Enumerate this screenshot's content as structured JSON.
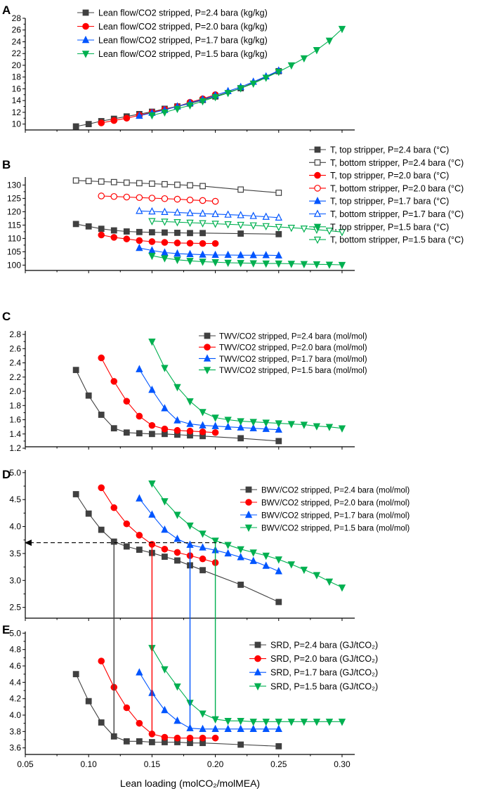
{
  "colors": {
    "p24": "#404040",
    "p20": "#ff0000",
    "p17": "#0055ff",
    "p15": "#00b050",
    "axis": "#000000"
  },
  "x_axis": {
    "label": "Lean loading (molCO₂/molMEA)",
    "ticks": [
      {
        "v": 0.05,
        "t": "0.05"
      },
      {
        "v": 0.1,
        "t": "0.10"
      },
      {
        "v": 0.15,
        "t": "0.15"
      },
      {
        "v": 0.2,
        "t": "0.20"
      },
      {
        "v": 0.25,
        "t": "0.25"
      },
      {
        "v": 0.3,
        "t": "0.30"
      }
    ],
    "range": [
      0.05,
      0.31
    ]
  },
  "chart_data": [
    {
      "panel": "A",
      "type": "line",
      "ylim": [
        9,
        28
      ],
      "yticks": [
        "10",
        "12",
        "14",
        "16",
        "18",
        "20",
        "22",
        "24",
        "26",
        "28"
      ],
      "series": [
        {
          "name": "Lean flow/CO2 stripped, P=2.4 bara (kg/kg)",
          "color": "p24",
          "marker": "square",
          "filled": true,
          "x": [
            0.09,
            0.1,
            0.11,
            0.12,
            0.13,
            0.14,
            0.15,
            0.16,
            0.17,
            0.18,
            0.19,
            0.2,
            0.22,
            0.25
          ],
          "y": [
            9.6,
            10.0,
            10.5,
            10.9,
            11.3,
            11.7,
            12.1,
            12.6,
            13.0,
            13.5,
            14.1,
            14.7,
            16.1,
            19.0
          ]
        },
        {
          "name": "Lean flow/CO2 stripped, P=2.0 bara (kg/kg)",
          "color": "p20",
          "marker": "circle",
          "filled": true,
          "x": [
            0.11,
            0.12,
            0.13,
            0.14,
            0.15,
            0.16,
            0.17,
            0.18,
            0.19,
            0.2
          ],
          "y": [
            10.2,
            10.6,
            11.0,
            11.5,
            12.0,
            12.5,
            13.0,
            13.7,
            14.3,
            15.0
          ]
        },
        {
          "name": "Lean flow/CO2 stripped, P=1.7 bara (kg/kg)",
          "color": "p17",
          "marker": "triangle-up",
          "filled": true,
          "x": [
            0.14,
            0.15,
            0.16,
            0.17,
            0.18,
            0.19,
            0.2,
            0.21,
            0.22,
            0.23,
            0.24,
            0.25
          ],
          "y": [
            11.4,
            11.9,
            12.4,
            13.0,
            13.6,
            14.2,
            14.9,
            15.6,
            16.3,
            17.2,
            18.1,
            19.1
          ]
        },
        {
          "name": "Lean flow/CO2 stripped, P=1.5 bara (kg/kg)",
          "color": "p15",
          "marker": "triangle-down",
          "filled": true,
          "x": [
            0.15,
            0.16,
            0.17,
            0.18,
            0.19,
            0.2,
            0.21,
            0.22,
            0.23,
            0.24,
            0.25,
            0.26,
            0.27,
            0.28,
            0.29,
            0.3
          ],
          "y": [
            11.5,
            12.0,
            12.6,
            13.2,
            13.9,
            14.6,
            15.3,
            16.1,
            16.9,
            17.9,
            18.9,
            20.0,
            21.2,
            22.6,
            24.2,
            26.2
          ]
        }
      ]
    },
    {
      "panel": "B",
      "type": "line",
      "ylim": [
        98,
        133
      ],
      "yticks": [
        "100",
        "105",
        "110",
        "115",
        "120",
        "125",
        "130"
      ],
      "series": [
        {
          "name": "T, top stripper, P=2.4 bara (°C)",
          "color": "p24",
          "marker": "square",
          "filled": true,
          "x": [
            0.09,
            0.1,
            0.11,
            0.12,
            0.13,
            0.14,
            0.15,
            0.16,
            0.17,
            0.18,
            0.19,
            0.22,
            0.25
          ],
          "y": [
            115.4,
            114.5,
            113.6,
            113.0,
            112.6,
            112.4,
            112.3,
            112.2,
            112.1,
            112.0,
            112.0,
            111.8,
            111.6
          ]
        },
        {
          "name": "T, bottom stripper, P=2.4 bara (°C)",
          "color": "p24",
          "marker": "square",
          "filled": false,
          "x": [
            0.09,
            0.1,
            0.11,
            0.12,
            0.13,
            0.14,
            0.15,
            0.16,
            0.17,
            0.18,
            0.19,
            0.22,
            0.25
          ],
          "y": [
            131.7,
            131.5,
            131.3,
            131.1,
            130.9,
            130.7,
            130.5,
            130.3,
            130.1,
            129.9,
            129.6,
            128.3,
            127.1
          ]
        },
        {
          "name": "T, top stripper, P=2.0 bara (°C)",
          "color": "p20",
          "marker": "circle",
          "filled": true,
          "x": [
            0.11,
            0.12,
            0.13,
            0.14,
            0.15,
            0.16,
            0.17,
            0.18,
            0.19,
            0.2
          ],
          "y": [
            111.3,
            110.4,
            109.8,
            109.2,
            108.8,
            108.5,
            108.3,
            108.2,
            108.1,
            108.1
          ]
        },
        {
          "name": "T, bottom stripper, P=2.0 bara (°C)",
          "color": "p20",
          "marker": "circle",
          "filled": false,
          "x": [
            0.11,
            0.12,
            0.13,
            0.14,
            0.15,
            0.16,
            0.17,
            0.18,
            0.19,
            0.2
          ],
          "y": [
            125.9,
            125.7,
            125.5,
            125.3,
            125.1,
            124.9,
            124.7,
            124.4,
            124.2,
            123.9
          ]
        },
        {
          "name": "T, top stripper, P=1.7 bara (°C)",
          "color": "p17",
          "marker": "triangle-up",
          "filled": true,
          "x": [
            0.14,
            0.15,
            0.16,
            0.17,
            0.18,
            0.19,
            0.2,
            0.21,
            0.22,
            0.23,
            0.24,
            0.25
          ],
          "y": [
            106.4,
            105.5,
            104.7,
            104.3,
            104.1,
            103.9,
            103.8,
            103.8,
            103.7,
            103.7,
            103.7,
            103.6
          ]
        },
        {
          "name": "T, bottom stripper, P=1.7 bara (°C)",
          "color": "p17",
          "marker": "triangle-up",
          "filled": false,
          "x": [
            0.14,
            0.15,
            0.16,
            0.17,
            0.18,
            0.19,
            0.2,
            0.21,
            0.22,
            0.23,
            0.24,
            0.25
          ],
          "y": [
            120.3,
            120.1,
            119.9,
            119.7,
            119.5,
            119.3,
            119.1,
            118.9,
            118.7,
            118.4,
            118.1,
            117.8
          ]
        },
        {
          "name": "T, top stripper, P=1.5 bara (°C)",
          "color": "p15",
          "marker": "triangle-down",
          "filled": true,
          "x": [
            0.15,
            0.16,
            0.17,
            0.18,
            0.19,
            0.2,
            0.21,
            0.22,
            0.23,
            0.24,
            0.25,
            0.26,
            0.27,
            0.28,
            0.29,
            0.3
          ],
          "y": [
            103.5,
            102.6,
            102.0,
            101.6,
            101.3,
            101.1,
            100.9,
            100.8,
            100.7,
            100.6,
            100.6,
            100.5,
            100.4,
            100.3,
            100.2,
            100.1
          ]
        },
        {
          "name": "T, bottom stripper, P=1.5 bara (°C)",
          "color": "p15",
          "marker": "triangle-down",
          "filled": false,
          "x": [
            0.15,
            0.16,
            0.17,
            0.18,
            0.19,
            0.2,
            0.21,
            0.22,
            0.23,
            0.24,
            0.25,
            0.26,
            0.27,
            0.28,
            0.29,
            0.3
          ],
          "y": [
            116.5,
            116.3,
            116.1,
            115.9,
            115.7,
            115.5,
            115.3,
            115.1,
            114.9,
            114.6,
            114.3,
            114.0,
            113.7,
            113.3,
            112.9,
            112.4
          ]
        }
      ]
    },
    {
      "panel": "C",
      "type": "line",
      "ylim": [
        1.22,
        2.85
      ],
      "yticks": [
        "1.2",
        "1.4",
        "1.6",
        "1.8",
        "2.0",
        "2.2",
        "2.4",
        "2.6",
        "2.8"
      ],
      "series": [
        {
          "name": "TWV/CO2 stripped, P=2.4 bara (mol/mol)",
          "color": "p24",
          "marker": "square",
          "filled": true,
          "x": [
            0.09,
            0.1,
            0.11,
            0.12,
            0.13,
            0.14,
            0.15,
            0.16,
            0.17,
            0.18,
            0.19,
            0.22,
            0.25
          ],
          "y": [
            2.3,
            1.94,
            1.67,
            1.48,
            1.42,
            1.41,
            1.4,
            1.4,
            1.39,
            1.38,
            1.37,
            1.34,
            1.3
          ]
        },
        {
          "name": "TWV/CO2 stripped, P=2.0 bara (mol/mol)",
          "color": "p20",
          "marker": "circle",
          "filled": true,
          "x": [
            0.11,
            0.12,
            0.13,
            0.14,
            0.15,
            0.16,
            0.17,
            0.18,
            0.19,
            0.2
          ],
          "y": [
            2.47,
            2.14,
            1.86,
            1.65,
            1.52,
            1.47,
            1.45,
            1.44,
            1.43,
            1.42
          ]
        },
        {
          "name": "TWV/CO2 stripped, P=1.7 bara (mol/mol)",
          "color": "p17",
          "marker": "triangle-up",
          "filled": true,
          "x": [
            0.14,
            0.15,
            0.16,
            0.17,
            0.18,
            0.19,
            0.2,
            0.21,
            0.22,
            0.23,
            0.24,
            0.25
          ],
          "y": [
            2.31,
            2.02,
            1.76,
            1.59,
            1.54,
            1.52,
            1.51,
            1.5,
            1.49,
            1.48,
            1.47,
            1.46
          ]
        },
        {
          "name": "TWV/CO2 stripped, P=1.5 bara (mol/mol)",
          "color": "p15",
          "marker": "triangle-down",
          "filled": true,
          "x": [
            0.15,
            0.16,
            0.17,
            0.18,
            0.19,
            0.2,
            0.21,
            0.22,
            0.23,
            0.24,
            0.25,
            0.26,
            0.27,
            0.28,
            0.29,
            0.3
          ],
          "y": [
            2.7,
            2.33,
            2.06,
            1.86,
            1.71,
            1.63,
            1.6,
            1.58,
            1.57,
            1.56,
            1.55,
            1.54,
            1.53,
            1.51,
            1.5,
            1.48
          ]
        }
      ]
    },
    {
      "panel": "D",
      "type": "line",
      "ylim": [
        2.3,
        5.05
      ],
      "yticks": [
        "2.5",
        "3.0",
        "3.5",
        "4.0",
        "4.5",
        "5.0"
      ],
      "series": [
        {
          "name": "BWV/CO2 stripped, P=2.4 bara (mol/mol)",
          "color": "p24",
          "marker": "square",
          "filled": true,
          "x": [
            0.09,
            0.1,
            0.11,
            0.12,
            0.13,
            0.14,
            0.15,
            0.16,
            0.17,
            0.18,
            0.19,
            0.22,
            0.25
          ],
          "y": [
            4.6,
            4.24,
            3.94,
            3.72,
            3.63,
            3.57,
            3.51,
            3.44,
            3.37,
            3.28,
            3.19,
            2.92,
            2.6
          ]
        },
        {
          "name": "BWV/CO2 stripped, P=2.0 bara (mol/mol)",
          "color": "p20",
          "marker": "circle",
          "filled": true,
          "x": [
            0.11,
            0.12,
            0.13,
            0.14,
            0.15,
            0.16,
            0.17,
            0.18,
            0.19,
            0.2
          ],
          "y": [
            4.72,
            4.35,
            4.05,
            3.84,
            3.67,
            3.58,
            3.52,
            3.46,
            3.4,
            3.33
          ]
        },
        {
          "name": "BWV/CO2 stripped, P=1.7 bara (mol/mol)",
          "color": "p17",
          "marker": "triangle-up",
          "filled": true,
          "x": [
            0.14,
            0.15,
            0.16,
            0.17,
            0.18,
            0.19,
            0.2,
            0.21,
            0.22,
            0.23,
            0.24,
            0.25
          ],
          "y": [
            4.52,
            4.22,
            3.94,
            3.77,
            3.66,
            3.61,
            3.56,
            3.5,
            3.43,
            3.36,
            3.27,
            3.17
          ]
        },
        {
          "name": "BWV/CO2 stripped, P=1.5 bara (mol/mol)",
          "color": "p15",
          "marker": "triangle-down",
          "filled": true,
          "x": [
            0.15,
            0.16,
            0.17,
            0.18,
            0.19,
            0.2,
            0.21,
            0.22,
            0.23,
            0.24,
            0.25,
            0.26,
            0.27,
            0.28,
            0.29,
            0.3
          ],
          "y": [
            4.8,
            4.47,
            4.22,
            4.02,
            3.87,
            3.74,
            3.66,
            3.58,
            3.52,
            3.46,
            3.39,
            3.3,
            3.2,
            3.1,
            2.98,
            2.87
          ]
        }
      ],
      "reference_y": 3.7
    },
    {
      "panel": "E",
      "type": "line",
      "ylim": [
        3.52,
        5.02
      ],
      "yticks": [
        "3.6",
        "3.8",
        "4.0",
        "4.2",
        "4.4",
        "4.6",
        "4.8",
        "5.0"
      ],
      "series": [
        {
          "name": "SRD, P=2.4 bara (GJ/tCO₂)",
          "color": "p24",
          "marker": "square",
          "filled": true,
          "x": [
            0.09,
            0.1,
            0.11,
            0.12,
            0.13,
            0.14,
            0.15,
            0.16,
            0.17,
            0.18,
            0.19,
            0.22,
            0.25
          ],
          "y": [
            4.5,
            4.17,
            3.91,
            3.74,
            3.68,
            3.68,
            3.67,
            3.67,
            3.67,
            3.66,
            3.66,
            3.64,
            3.62
          ]
        },
        {
          "name": "SRD, P=2.0 bara (GJ/tCO₂)",
          "color": "p20",
          "marker": "circle",
          "filled": true,
          "x": [
            0.11,
            0.12,
            0.13,
            0.14,
            0.15,
            0.16,
            0.17,
            0.18,
            0.19,
            0.2
          ],
          "y": [
            4.66,
            4.34,
            4.09,
            3.9,
            3.77,
            3.73,
            3.72,
            3.72,
            3.72,
            3.72
          ]
        },
        {
          "name": "SRD, P=1.7 bara (GJ/tCO₂)",
          "color": "p17",
          "marker": "triangle-up",
          "filled": true,
          "x": [
            0.14,
            0.15,
            0.16,
            0.17,
            0.18,
            0.19,
            0.2,
            0.21,
            0.22,
            0.23,
            0.24,
            0.25
          ],
          "y": [
            4.52,
            4.27,
            4.06,
            3.93,
            3.84,
            3.83,
            3.83,
            3.83,
            3.83,
            3.83,
            3.83,
            3.83
          ]
        },
        {
          "name": "SRD, P=1.5 bara (GJ/tCO₂)",
          "color": "p15",
          "marker": "triangle-down",
          "filled": true,
          "x": [
            0.15,
            0.16,
            0.17,
            0.18,
            0.19,
            0.2,
            0.21,
            0.22,
            0.23,
            0.24,
            0.25,
            0.26,
            0.27,
            0.28,
            0.29,
            0.3
          ],
          "y": [
            4.82,
            4.56,
            4.35,
            4.15,
            4.02,
            3.95,
            3.93,
            3.93,
            3.92,
            3.92,
            3.92,
            3.92,
            3.92,
            3.92,
            3.92,
            3.92
          ]
        }
      ]
    }
  ],
  "drop_lines": [
    {
      "x": 0.12,
      "color": "p24"
    },
    {
      "x": 0.15,
      "color": "p20"
    },
    {
      "x": 0.18,
      "color": "p17"
    },
    {
      "x": 0.2,
      "color": "p15"
    }
  ]
}
